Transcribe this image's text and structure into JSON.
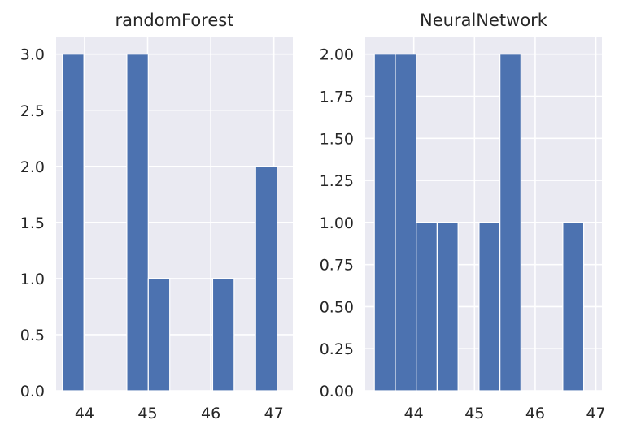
{
  "chart_data": [
    {
      "type": "bar",
      "title": "randomForest",
      "bar_color": "#4c72b0",
      "panel_background": "#eaeaf2",
      "grid": true,
      "xlim": [
        43.55,
        47.3
      ],
      "ylim": [
        0,
        3.15
      ],
      "x_ticks": [
        44,
        45,
        46,
        47
      ],
      "y_ticks": [
        0.0,
        0.5,
        1.0,
        1.5,
        2.0,
        2.5,
        3.0
      ],
      "y_tick_labels": [
        "0.0",
        "0.5",
        "1.0",
        "1.5",
        "2.0",
        "2.5",
        "3.0"
      ],
      "bin_edges": [
        43.65,
        43.99,
        44.33,
        44.67,
        45.01,
        45.35,
        45.69,
        46.03,
        46.37,
        46.71,
        47.05
      ],
      "values": [
        3,
        0,
        0,
        3,
        1,
        0,
        0,
        1,
        0,
        2
      ]
    },
    {
      "type": "bar",
      "title": "NeuralNetwork",
      "bar_color": "#4c72b0",
      "panel_background": "#eaeaf2",
      "grid": true,
      "xlim": [
        43.2,
        47.1
      ],
      "ylim": [
        0,
        2.1
      ],
      "x_ticks": [
        44,
        45,
        46,
        47
      ],
      "y_ticks": [
        0.0,
        0.25,
        0.5,
        0.75,
        1.0,
        1.25,
        1.5,
        1.75,
        2.0
      ],
      "y_tick_labels": [
        "0.00",
        "0.25",
        "0.50",
        "0.75",
        "1.00",
        "1.25",
        "1.50",
        "1.75",
        "2.00"
      ],
      "bin_edges": [
        43.35,
        43.695,
        44.04,
        44.385,
        44.73,
        45.075,
        45.42,
        45.765,
        46.11,
        46.455,
        46.8
      ],
      "values": [
        2,
        2,
        1,
        1,
        0,
        1,
        2,
        0,
        0,
        1
      ]
    }
  ]
}
